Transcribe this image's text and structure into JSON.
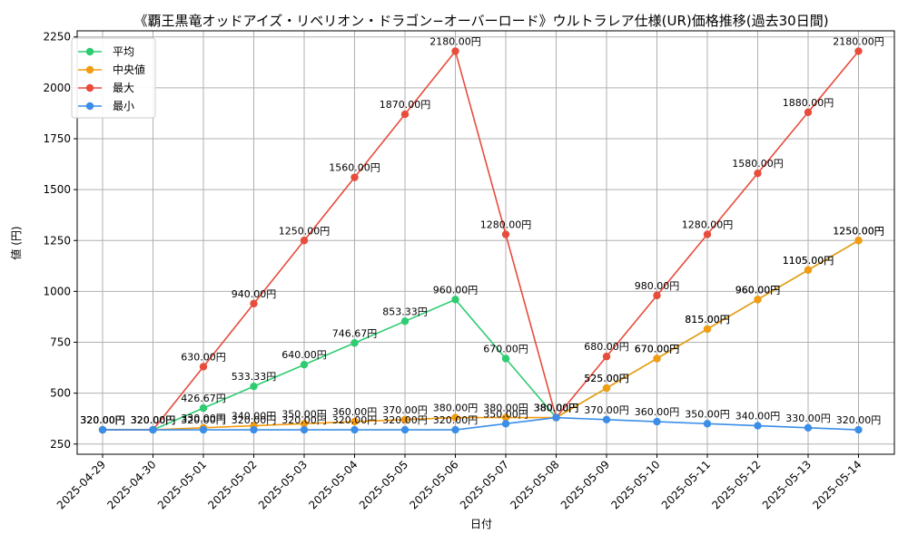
{
  "chart_data": {
    "type": "line",
    "title": "《覇王黒竜オッドアイズ・リベリオン・ドラゴン−オーバーロード》ウルトラレア仕様(UR)価格推移(過去30日間)",
    "xlabel": "日付",
    "ylabel": "値 (円)",
    "ylim": [
      200,
      2280
    ],
    "yticks": [
      250,
      500,
      750,
      1000,
      1250,
      1500,
      1750,
      2000,
      2250
    ],
    "grid": true,
    "legend_position": "top-left",
    "value_suffix": "円",
    "categories": [
      "2025-04-29",
      "2025-04-30",
      "2025-05-01",
      "2025-05-02",
      "2025-05-03",
      "2025-05-04",
      "2025-05-05",
      "2025-05-06",
      "2025-05-07",
      "2025-05-08",
      "2025-05-09",
      "2025-05-10",
      "2025-05-11",
      "2025-05-12",
      "2025-05-13",
      "2025-05-14"
    ],
    "series": [
      {
        "name": "平均",
        "color": "#2ecc71",
        "values": [
          320,
          320,
          426.67,
          533.33,
          640,
          746.67,
          853.33,
          960,
          670,
          380,
          525,
          670,
          815,
          960,
          1105,
          1250
        ]
      },
      {
        "name": "中央値",
        "color": "#f39c12",
        "values": [
          320,
          320,
          330,
          340,
          350,
          360,
          370,
          380,
          380,
          380,
          525,
          670,
          815,
          960,
          1105,
          1250
        ]
      },
      {
        "name": "最大",
        "color": "#e74c3c",
        "values": [
          320,
          320,
          630,
          940,
          1250,
          1560,
          1870,
          2180,
          1280,
          380,
          680,
          980,
          1280,
          1580,
          1880,
          2180
        ]
      },
      {
        "name": "最小",
        "color": "#3b8ee8",
        "values": [
          320,
          320,
          320,
          320,
          320,
          320,
          320,
          320,
          350,
          380,
          370,
          360,
          350,
          340,
          330,
          320
        ]
      }
    ]
  }
}
